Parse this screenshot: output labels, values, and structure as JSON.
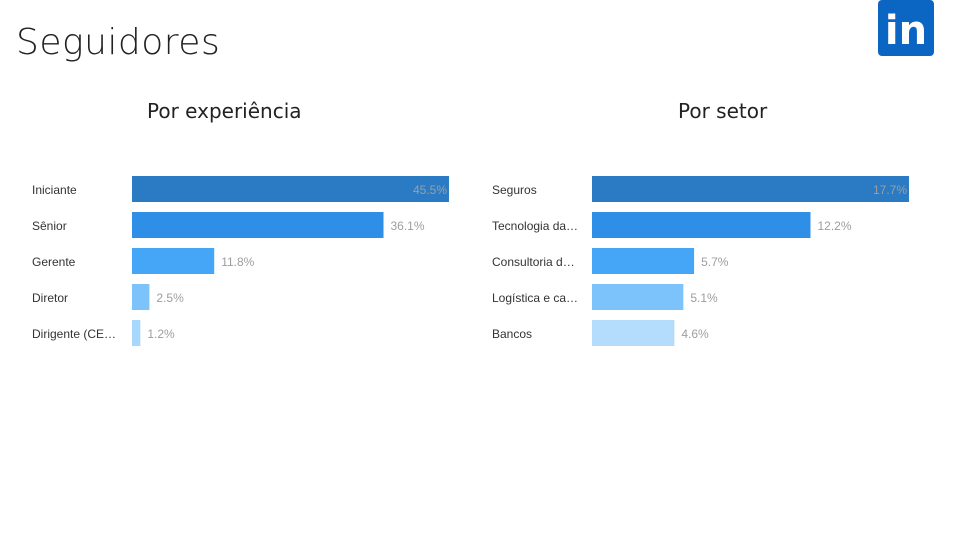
{
  "page": {
    "title": "Seguidores",
    "logo_text": "in",
    "logo_name": "linkedin-logo",
    "brand_color": "#0a66c2"
  },
  "chart_data": [
    {
      "type": "bar",
      "orientation": "horizontal",
      "title": "Por experiência",
      "categories": [
        "Iniciante",
        "Sênior",
        "Gerente",
        "Diretor",
        "Dirigente (CE…"
      ],
      "values": [
        45.5,
        36.1,
        11.8,
        2.5,
        1.2
      ],
      "value_labels": [
        "45.5%",
        "36.1%",
        "11.8%",
        "2.5%",
        "1.2%"
      ],
      "xlim": [
        0,
        45.5
      ],
      "grid": false,
      "colors": [
        "#2a7bc4",
        "#2f8fe6",
        "#45a6f7",
        "#7cc3fb",
        "#a8d7fd"
      ]
    },
    {
      "type": "bar",
      "orientation": "horizontal",
      "title": "Por setor",
      "categories": [
        "Seguros",
        "Tecnologia da…",
        "Consultoria d…",
        "Logística e ca…",
        "Bancos"
      ],
      "values": [
        17.7,
        12.2,
        5.7,
        5.1,
        4.6
      ],
      "value_labels": [
        "17.7%",
        "12.2%",
        "5.7%",
        "5.1%",
        "4.6%"
      ],
      "xlim": [
        0,
        17.7
      ],
      "grid": false,
      "colors": [
        "#2a7bc4",
        "#2f8fe6",
        "#45a6f7",
        "#7cc3fb",
        "#b3dcfd"
      ]
    }
  ]
}
